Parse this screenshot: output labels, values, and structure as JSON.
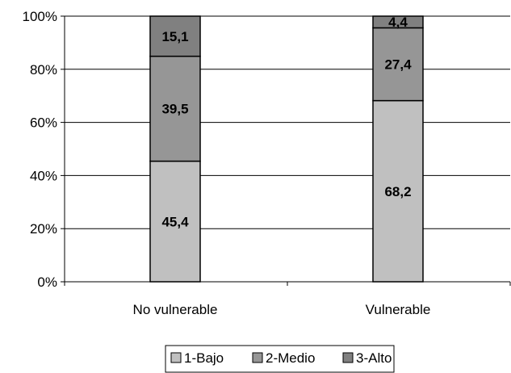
{
  "chart_data": {
    "type": "bar",
    "stacked": true,
    "percent": true,
    "categories": [
      "No vulnerable",
      "Vulnerable"
    ],
    "series": [
      {
        "name": "1-Bajo",
        "values": [
          45.4,
          68.2
        ],
        "labels": [
          "45,4",
          "68,2"
        ],
        "color": "#c0c0c0"
      },
      {
        "name": "2-Medio",
        "values": [
          39.5,
          27.4
        ],
        "labels": [
          "39,5",
          "27,4"
        ],
        "color": "#969696"
      },
      {
        "name": "3-Alto",
        "values": [
          15.1,
          4.4
        ],
        "labels": [
          "15,1",
          "4,4"
        ],
        "color": "#808080"
      }
    ],
    "ylim": [
      0,
      100
    ],
    "yticks": [
      "0%",
      "20%",
      "40%",
      "60%",
      "80%",
      "100%"
    ],
    "title": "",
    "xlabel": "",
    "ylabel": "",
    "grid": true,
    "legend_position": "bottom"
  }
}
